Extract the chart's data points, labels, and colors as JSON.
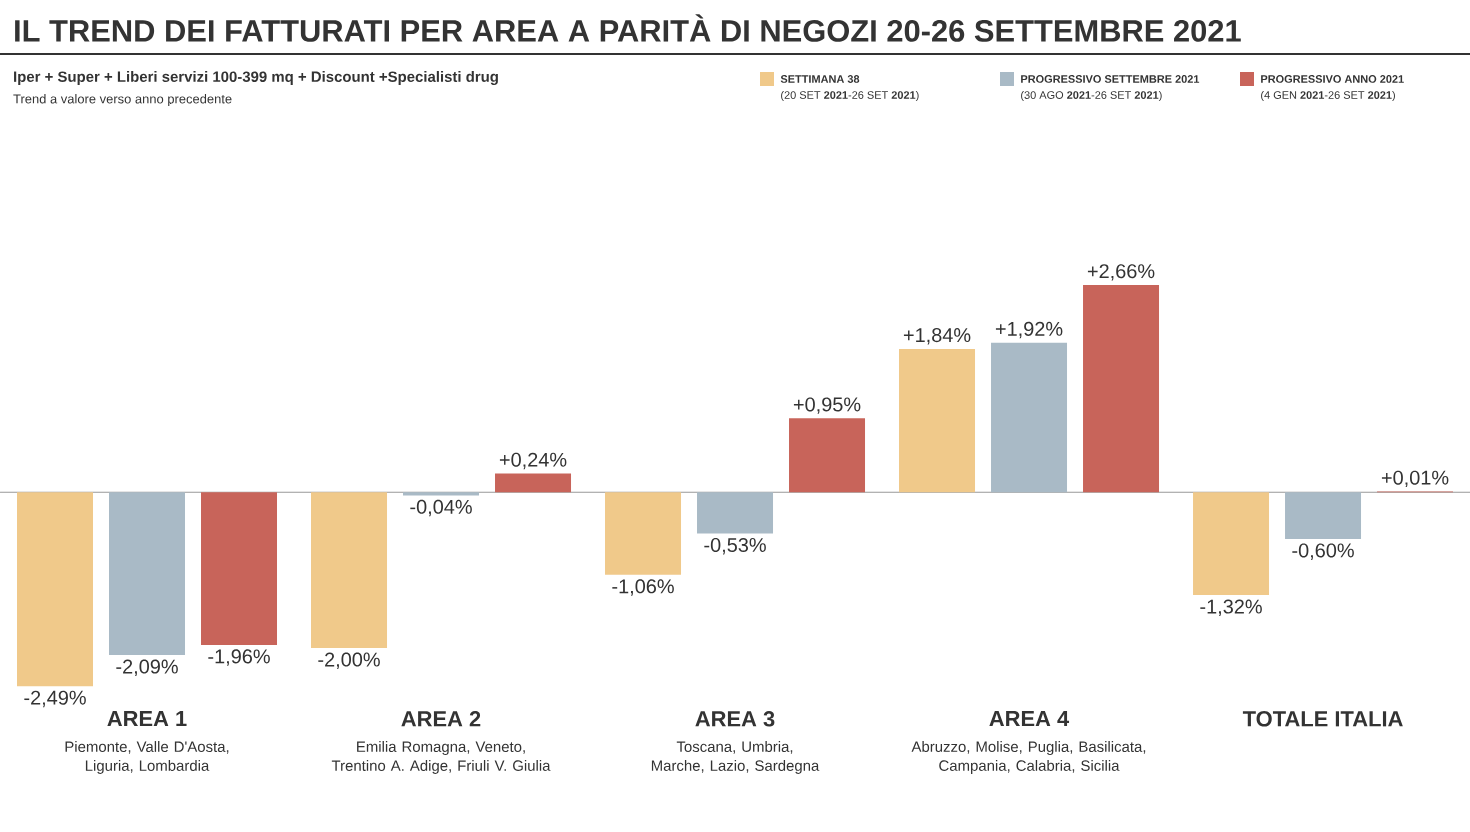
{
  "chart_data": {
    "type": "bar",
    "title": "IL TREND DEI FATTURATI PER AREA A PARITÀ DI NEGOZI 20-26 SETTEMBRE 2021",
    "subtitle": "Iper + Super + Liberi servizi 100-399 mq + Discount +Specialisti drug",
    "categories": [
      "AREA 1",
      "AREA 2",
      "AREA 3",
      "AREA 4",
      "TOTALE ITALIA"
    ],
    "series": [
      {
        "name": "SETTIMANA 38",
        "color": "#f0c98a",
        "values": [
          -2.49,
          -2.0,
          -1.06,
          1.84,
          -1.32
        ],
        "value_labels": [
          "-2,49%",
          "-2,00%",
          "-1,06%",
          "+1,84%",
          "-1,32%"
        ]
      },
      {
        "name": "PROGRESSIVO SETTEMBRE 2021",
        "color": "#a9bac6",
        "values": [
          -2.09,
          -0.04,
          -0.53,
          1.92,
          -0.6
        ],
        "value_labels": [
          "-2,09%",
          "-0,04%",
          "-0,53%",
          "+1,92%",
          "-0,60%"
        ]
      },
      {
        "name": "PROGRESSIVO ANNO 2021",
        "color": "#c8645a",
        "values": [
          -1.96,
          0.24,
          0.95,
          2.66,
          0.01
        ],
        "value_labels": [
          "-1,96%",
          "+0,24%",
          "+0,95%",
          "+2,66%",
          "+0,01%"
        ]
      }
    ],
    "annotations": [
      "Piemonte, Valle D'Aosta, Liguria, Lombardia",
      "Emilia Romagna, Veneto, Trentino A. Adige, Friuli V. Giulia",
      "Toscana, Umbria, Marche, Lazio, Sardegna",
      "Abruzzo, Molise, Puglia, Basilicata, Campania, Calabria, Sicilia",
      "(20 SET **2021**-26 SET **2021**)",
      "(30 AGO **2021**-26 SET **2021**)",
      "(4 GEN **2021**-26 SET **2021**)",
      "Trend a valore verso anno precedente"
    ],
    "legend": "top right"
  }
}
